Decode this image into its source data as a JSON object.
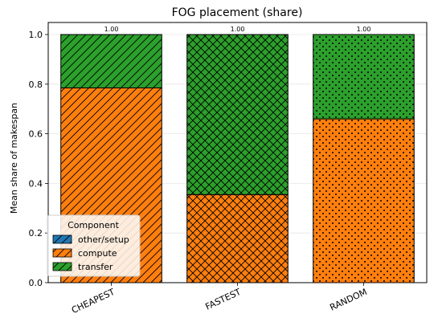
{
  "chart_data": {
    "type": "bar",
    "stacked": true,
    "title": "FOG placement (share)",
    "xlabel": "",
    "ylabel": "Mean share of makespan",
    "ylim": [
      0,
      1.0
    ],
    "yticks": [
      "0.0",
      "0.2",
      "0.4",
      "0.6",
      "0.8",
      "1.0"
    ],
    "ytick_values": [
      0,
      0.2,
      0.4,
      0.6,
      0.8,
      1.0
    ],
    "grid": true,
    "categories": [
      "CHEAPEST",
      "FASTEST",
      "RANDOM"
    ],
    "category_hatches": [
      "diagonal",
      "crosshatch",
      "dots"
    ],
    "series": [
      {
        "name": "other/setup",
        "color": "#1f77b4",
        "values": [
          0,
          0,
          0
        ]
      },
      {
        "name": "compute",
        "color": "#ff7f0e",
        "values": [
          0.785,
          0.355,
          0.66
        ]
      },
      {
        "name": "transfer",
        "color": "#2ca02c",
        "values": [
          0.215,
          0.645,
          0.34
        ]
      }
    ],
    "totals_labels": [
      "1.00",
      "1.00",
      "1.00"
    ],
    "legend": {
      "title": "Component",
      "position": "lower-left"
    }
  }
}
